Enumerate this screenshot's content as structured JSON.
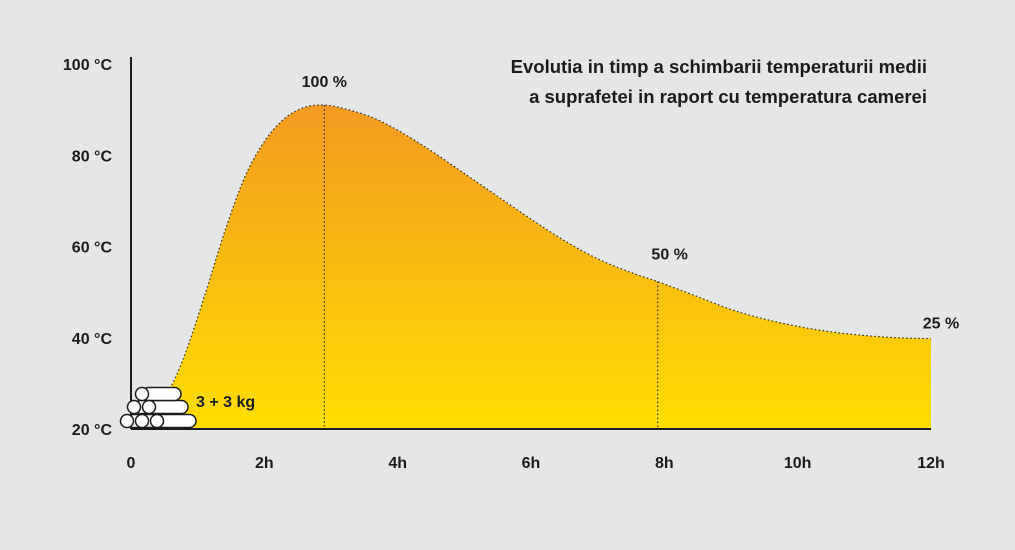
{
  "chart_data": {
    "type": "area",
    "title_lines": [
      "Evolutia in timp a schimbarii temperaturii medii",
      "a suprafetei in raport cu temperatura camerei"
    ],
    "xlabel": "",
    "ylabel": "",
    "x_ticks": [
      "0",
      "2h",
      "4h",
      "6h",
      "8h",
      "10h",
      "12h"
    ],
    "y_ticks": [
      "20 °C",
      "40 °C",
      "60 °C",
      "80 °C",
      "100 °C"
    ],
    "xlim": [
      0,
      12
    ],
    "ylim": [
      20,
      100
    ],
    "grid": false,
    "series": [
      {
        "x": [
          0.2,
          0.55,
          0.8,
          1.1,
          1.4,
          1.7,
          2.0,
          2.3,
          2.6,
          2.9,
          3.2,
          3.6,
          4.0,
          4.5,
          5.0,
          5.5,
          6.0,
          6.5,
          7.0,
          7.5,
          7.9,
          8.5,
          9.0,
          9.5,
          10.0,
          10.5,
          11.0,
          11.5,
          12.0
        ],
        "y": [
          21,
          28,
          36,
          49,
          63,
          75,
          83,
          88,
          90.5,
          91,
          90.2,
          88.4,
          85.5,
          81,
          76,
          71,
          66,
          61.3,
          57.3,
          54.3,
          52.3,
          49,
          46.2,
          44.1,
          42.5,
          41.3,
          40.5,
          40,
          39.8
        ]
      }
    ],
    "markers": [
      {
        "x": 2.9,
        "y": 91,
        "label": "100 %"
      },
      {
        "x": 7.9,
        "y": 52.3,
        "label": "50 %"
      },
      {
        "x": 12.0,
        "y": 39.8,
        "label": "25 %"
      }
    ],
    "annotations": [
      {
        "text": "3 + 3 kg"
      }
    ],
    "colors": {
      "fill_top": "#f39a21",
      "fill_bottom": "#ffde00",
      "axis": "#1b1b1b",
      "background": "#e5e6e8"
    }
  }
}
